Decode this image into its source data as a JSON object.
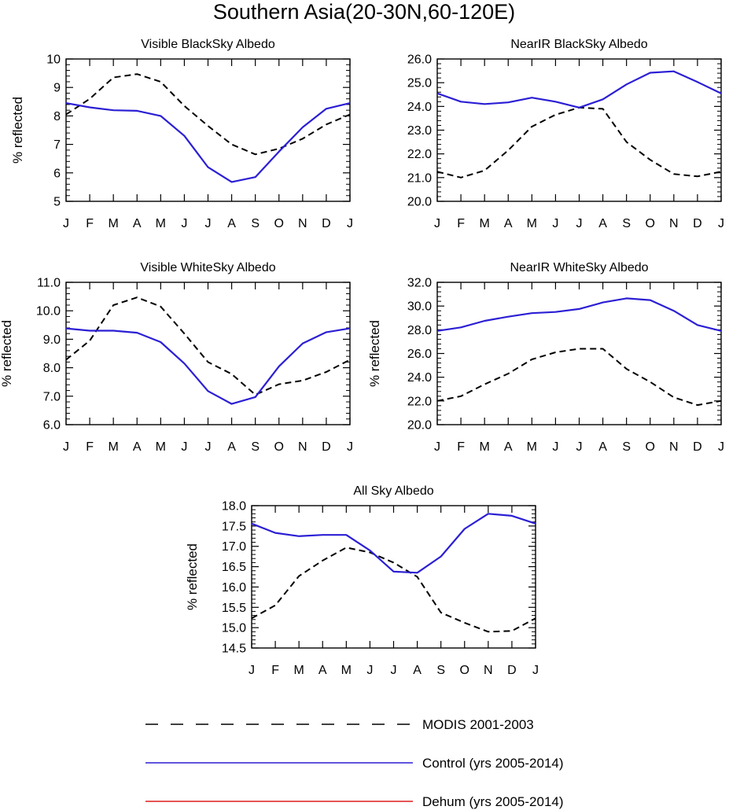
{
  "title": "Southern Asia(20-30N,60-120E)",
  "colors": {
    "modis": "#000000",
    "control": "#2b1fd4",
    "dehum": "#dd1f1f"
  },
  "legend": {
    "modis": "MODIS 2001-2003",
    "control": "Control (yrs 2005-2014)",
    "dehum": "Dehum (yrs 2005-2014)"
  },
  "chart_data": [
    {
      "type": "line",
      "title": "Visible BlackSky Albedo",
      "ylabel": "% reflected",
      "xlabel": "",
      "x": [
        "J",
        "F",
        "M",
        "A",
        "M",
        "J",
        "J",
        "A",
        "S",
        "O",
        "N",
        "D",
        "J"
      ],
      "ylim": [
        5,
        10
      ],
      "yticks": [
        "5",
        "6",
        "7",
        "8",
        "9",
        "10"
      ],
      "series": [
        {
          "name": "MODIS 2001-2003",
          "style": "dashed",
          "values": [
            8.05,
            8.6,
            9.35,
            9.47,
            9.2,
            8.35,
            7.65,
            7.0,
            6.65,
            6.85,
            7.2,
            7.7,
            8.05
          ]
        },
        {
          "name": "Control (yrs 2005-2014)",
          "style": "solid",
          "values": [
            8.45,
            8.3,
            8.2,
            8.18,
            8.0,
            7.3,
            6.2,
            5.68,
            5.85,
            6.75,
            7.6,
            8.25,
            8.45
          ]
        }
      ]
    },
    {
      "type": "line",
      "title": "NearIR BlackSky Albedo",
      "ylabel": "",
      "xlabel": "",
      "x": [
        "J",
        "F",
        "M",
        "A",
        "M",
        "J",
        "J",
        "A",
        "S",
        "O",
        "N",
        "D",
        "J"
      ],
      "ylim": [
        20,
        26
      ],
      "yticks": [
        "20.0",
        "21.0",
        "22.0",
        "23.0",
        "24.0",
        "25.0",
        "26.0"
      ],
      "series": [
        {
          "name": "MODIS 2001-2003",
          "style": "dashed",
          "values": [
            21.25,
            21.0,
            21.3,
            22.15,
            23.15,
            23.65,
            23.95,
            23.9,
            22.5,
            21.75,
            21.15,
            21.05,
            21.25
          ]
        },
        {
          "name": "Control (yrs 2005-2014)",
          "style": "solid",
          "values": [
            24.55,
            24.2,
            24.1,
            24.17,
            24.37,
            24.2,
            23.95,
            24.3,
            24.93,
            25.42,
            25.48,
            25.03,
            24.55
          ]
        }
      ]
    },
    {
      "type": "line",
      "title": "Visible WhiteSky Albedo",
      "ylabel": "% reflected",
      "xlabel": "",
      "x": [
        "J",
        "F",
        "M",
        "A",
        "M",
        "J",
        "J",
        "A",
        "S",
        "O",
        "N",
        "D",
        "J"
      ],
      "ylim": [
        6,
        11
      ],
      "yticks": [
        "6.0",
        "7.0",
        "8.0",
        "9.0",
        "10.0",
        "11.0"
      ],
      "series": [
        {
          "name": "MODIS 2001-2003",
          "style": "dashed",
          "values": [
            8.28,
            8.95,
            10.2,
            10.47,
            10.15,
            9.2,
            8.2,
            7.78,
            7.05,
            7.42,
            7.55,
            7.85,
            8.28
          ]
        },
        {
          "name": "Control (yrs 2005-2014)",
          "style": "solid",
          "values": [
            9.38,
            9.3,
            9.3,
            9.23,
            8.9,
            8.15,
            7.18,
            6.73,
            6.97,
            8.05,
            8.85,
            9.25,
            9.38
          ]
        }
      ]
    },
    {
      "type": "line",
      "title": "NearIR WhiteSky Albedo",
      "ylabel": "% reflected",
      "xlabel": "",
      "x": [
        "J",
        "F",
        "M",
        "A",
        "M",
        "J",
        "J",
        "A",
        "S",
        "O",
        "N",
        "D",
        "J"
      ],
      "ylim": [
        20,
        32
      ],
      "yticks": [
        "20.0",
        "22.0",
        "24.0",
        "26.0",
        "28.0",
        "30.0",
        "32.0"
      ],
      "series": [
        {
          "name": "MODIS 2001-2003",
          "style": "dashed",
          "values": [
            22.0,
            22.4,
            23.4,
            24.3,
            25.5,
            26.1,
            26.4,
            26.4,
            24.7,
            23.6,
            22.3,
            21.65,
            22.0
          ]
        },
        {
          "name": "Control (yrs 2005-2014)",
          "style": "solid",
          "values": [
            27.9,
            28.2,
            28.75,
            29.1,
            29.4,
            29.5,
            29.75,
            30.3,
            30.65,
            30.5,
            29.6,
            28.4,
            27.9
          ]
        }
      ]
    },
    {
      "type": "line",
      "title": "All Sky Albedo",
      "ylabel": "% reflected",
      "xlabel": "",
      "x": [
        "J",
        "F",
        "M",
        "A",
        "M",
        "J",
        "J",
        "A",
        "S",
        "O",
        "N",
        "D",
        "J"
      ],
      "ylim": [
        14.5,
        18
      ],
      "yticks": [
        "14.5",
        "15.0",
        "15.5",
        "16.0",
        "16.5",
        "17.0",
        "17.5",
        "18.0"
      ],
      "series": [
        {
          "name": "MODIS 2001-2003",
          "style": "dashed",
          "values": [
            15.23,
            15.55,
            16.27,
            16.65,
            16.97,
            16.85,
            16.6,
            16.25,
            15.37,
            15.12,
            14.9,
            14.92,
            15.23
          ]
        },
        {
          "name": "Control (yrs 2005-2014)",
          "style": "solid",
          "values": [
            17.56,
            17.33,
            17.25,
            17.28,
            17.28,
            16.9,
            16.38,
            16.35,
            16.75,
            17.43,
            17.8,
            17.75,
            17.56
          ]
        }
      ]
    }
  ]
}
